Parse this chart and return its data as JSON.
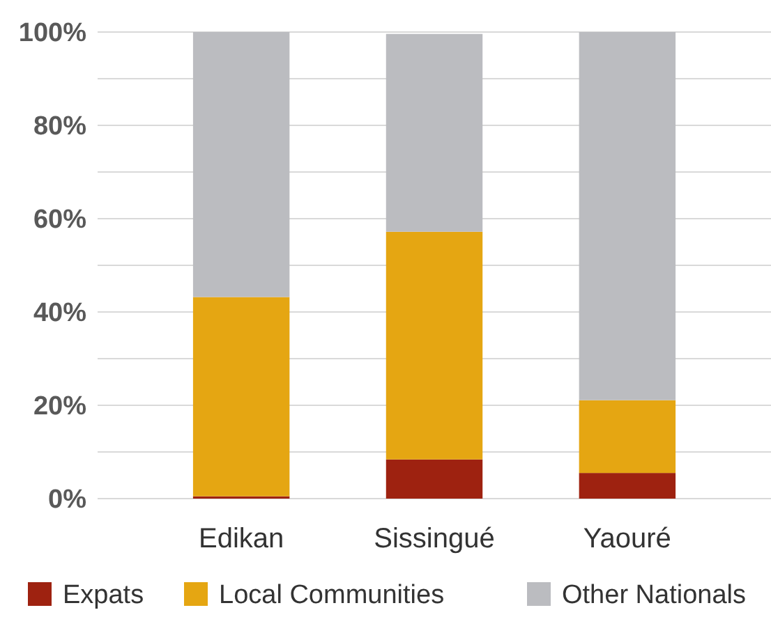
{
  "chart_data": {
    "type": "bar",
    "stacked": true,
    "categories": [
      "Edikan",
      "Sissingué",
      "Yaouré"
    ],
    "series": [
      {
        "name": "Expats",
        "color": "#9e2210",
        "values": [
          0.5,
          8.4,
          5.5
        ]
      },
      {
        "name": "Local Communities",
        "color": "#e5a612",
        "values": [
          42.7,
          48.8,
          15.6
        ]
      },
      {
        "name": "Other Nationals",
        "color": "#bbbcc0",
        "values": [
          56.8,
          42.4,
          78.9
        ]
      }
    ],
    "ylim": [
      0,
      100
    ],
    "yticks": [
      {
        "value": 0,
        "label": "0%"
      },
      {
        "value": 10,
        "label": null
      },
      {
        "value": 20,
        "label": "20%"
      },
      {
        "value": 30,
        "label": null
      },
      {
        "value": 40,
        "label": "40%"
      },
      {
        "value": 50,
        "label": null
      },
      {
        "value": 60,
        "label": "60%"
      },
      {
        "value": 70,
        "label": null
      },
      {
        "value": 80,
        "label": "80%"
      },
      {
        "value": 90,
        "label": null
      },
      {
        "value": 100,
        "label": "100%"
      }
    ],
    "grid": "y",
    "legend": "bottom"
  }
}
